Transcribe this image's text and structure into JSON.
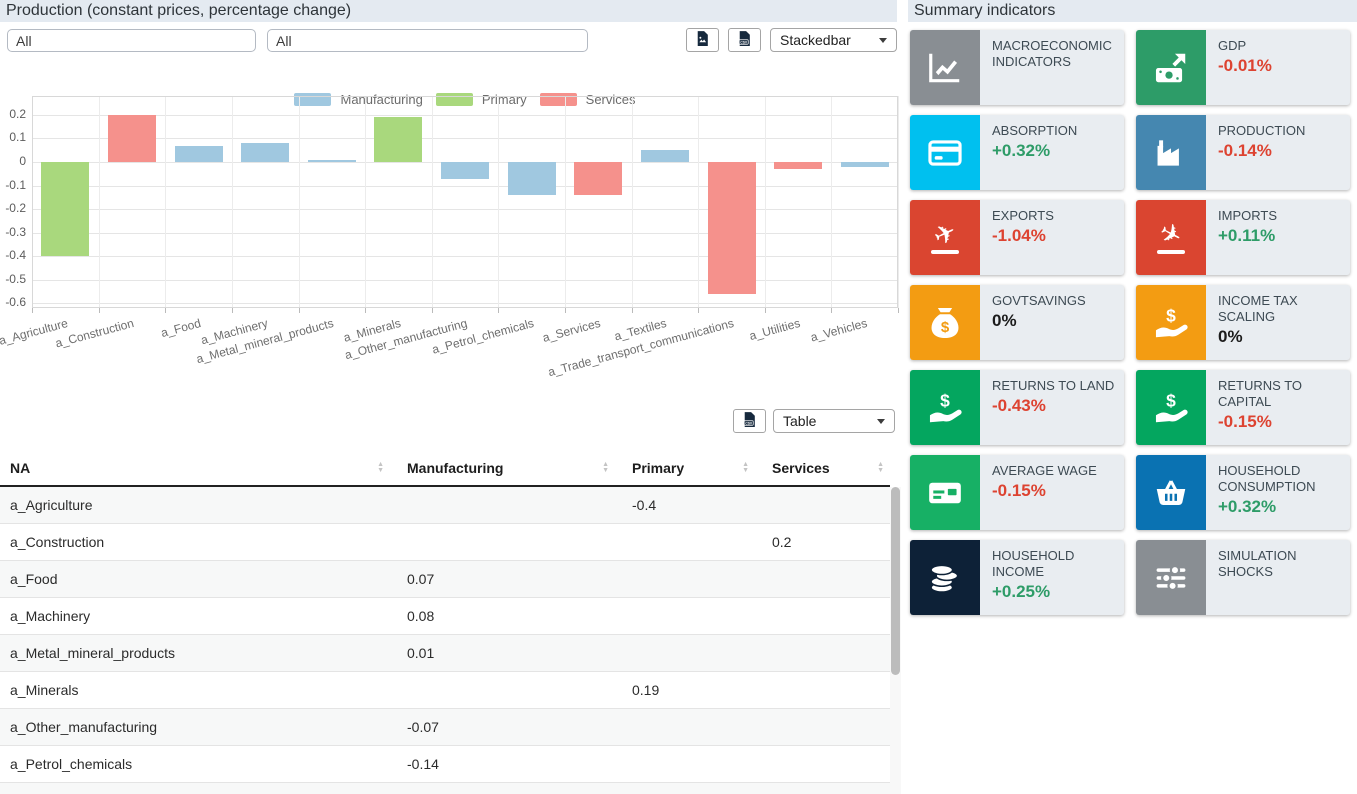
{
  "production": {
    "title": "Production (constant prices, percentage change)",
    "filters": [
      {
        "value": "All"
      },
      {
        "value": "All"
      }
    ],
    "controls": {
      "chart_type": "Stackedbar",
      "table_view": "Table",
      "export_image_icon": "file-image-icon",
      "export_csv_icon": "file-csv-icon"
    }
  },
  "chart_data": {
    "type": "bar",
    "title": "",
    "xlabel": "",
    "ylabel": "",
    "legend_position": "top",
    "grid": true,
    "categories": [
      "a_Agriculture",
      "a_Construction",
      "a_Food",
      "a_Machinery",
      "a_Metal_mineral_products",
      "a_Minerals",
      "a_Other_manufacturing",
      "a_Petrol_chemicals",
      "a_Services",
      "a_Textiles",
      "a_Trade_transport_communications",
      "a_Utilities",
      "a_Vehicles"
    ],
    "series": [
      {
        "name": "Manufacturing",
        "color": "#a0c8e0",
        "values": [
          null,
          null,
          0.07,
          0.08,
          0.01,
          null,
          -0.07,
          -0.14,
          null,
          0.05,
          null,
          null,
          -0.02
        ]
      },
      {
        "name": "Primary",
        "color": "#a9d87d",
        "values": [
          -0.4,
          null,
          null,
          null,
          null,
          0.19,
          null,
          null,
          null,
          null,
          null,
          null,
          null
        ]
      },
      {
        "name": "Services",
        "color": "#f5918c",
        "values": [
          null,
          0.2,
          null,
          null,
          null,
          null,
          null,
          null,
          -0.14,
          null,
          -0.56,
          -0.03,
          null
        ]
      }
    ],
    "yticks": [
      0.2,
      0.1,
      0,
      -0.1,
      -0.2,
      -0.3,
      -0.4,
      -0.5,
      -0.6
    ],
    "ylim": [
      -0.62,
      0.28
    ]
  },
  "table": {
    "columns": [
      "NA",
      "Manufacturing",
      "Primary",
      "Services"
    ],
    "rows": [
      {
        "name": "a_Agriculture",
        "manufacturing": "",
        "primary": "-0.4",
        "services": ""
      },
      {
        "name": "a_Construction",
        "manufacturing": "",
        "primary": "",
        "services": "0.2"
      },
      {
        "name": "a_Food",
        "manufacturing": "0.07",
        "primary": "",
        "services": ""
      },
      {
        "name": "a_Machinery",
        "manufacturing": "0.08",
        "primary": "",
        "services": ""
      },
      {
        "name": "a_Metal_mineral_products",
        "manufacturing": "0.01",
        "primary": "",
        "services": ""
      },
      {
        "name": "a_Minerals",
        "manufacturing": "",
        "primary": "0.19",
        "services": ""
      },
      {
        "name": "a_Other_manufacturing",
        "manufacturing": "-0.07",
        "primary": "",
        "services": ""
      },
      {
        "name": "a_Petrol_chemicals",
        "manufacturing": "-0.14",
        "primary": "",
        "services": ""
      }
    ]
  },
  "summary": {
    "title": "Summary indicators",
    "value_colors": {
      "positive": "#2e9c68",
      "negative": "#dd4331",
      "zero": "#1c1c1c"
    },
    "tiles": [
      {
        "label": "MACROECONOMIC INDICATORS",
        "value": "",
        "trend": "",
        "icon": "line-chart-icon",
        "icon_bg": "#898e93"
      },
      {
        "label": "GDP",
        "value": "-0.01%",
        "trend": "negative",
        "icon": "money-trend-icon",
        "icon_bg": "#2d9c68"
      },
      {
        "label": "ABSORPTION",
        "value": "+0.32%",
        "trend": "positive",
        "icon": "credit-card-icon",
        "icon_bg": "#00c0ef"
      },
      {
        "label": "PRODUCTION",
        "value": "-0.14%",
        "trend": "negative",
        "icon": "industry-icon",
        "icon_bg": "#4587b0"
      },
      {
        "label": "EXPORTS",
        "value": "-1.04%",
        "trend": "negative",
        "icon": "plane-departure-icon",
        "icon_bg": "#da4530"
      },
      {
        "label": "IMPORTS",
        "value": "+0.11%",
        "trend": "positive",
        "icon": "plane-arrival-icon",
        "icon_bg": "#da4530"
      },
      {
        "label": "GOVTSAVINGS",
        "value": "0%",
        "trend": "zero",
        "icon": "money-bag-icon",
        "icon_bg": "#f39c12"
      },
      {
        "label": "INCOME TAX SCALING",
        "value": "0%",
        "trend": "zero",
        "icon": "hand-holding-dollar-icon",
        "icon_bg": "#f39c12"
      },
      {
        "label": "RETURNS TO LAND",
        "value": "-0.43%",
        "trend": "negative",
        "icon": "hand-holding-dollar-icon",
        "icon_bg": "#04a65f"
      },
      {
        "label": "RETURNS TO CAPITAL",
        "value": "-0.15%",
        "trend": "negative",
        "icon": "hand-holding-dollar-icon",
        "icon_bg": "#04a65f"
      },
      {
        "label": "AVERAGE WAGE",
        "value": "-0.15%",
        "trend": "negative",
        "icon": "money-check-icon",
        "icon_bg": "#17b065"
      },
      {
        "label": "HOUSEHOLD CONSUMPTION",
        "value": "+0.32%",
        "trend": "positive",
        "icon": "basket-icon",
        "icon_bg": "#0a72b2"
      },
      {
        "label": "HOUSEHOLD INCOME",
        "value": "+0.25%",
        "trend": "positive",
        "icon": "coins-icon",
        "icon_bg": "#0d2137"
      },
      {
        "label": "SIMULATION SHOCKS",
        "value": "",
        "trend": "",
        "icon": "sliders-icon",
        "icon_bg": "#898e93"
      }
    ]
  }
}
